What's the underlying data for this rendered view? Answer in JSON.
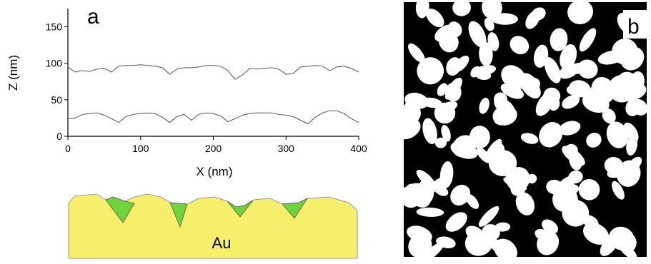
{
  "chart_data": {
    "type": "line",
    "panel_label": "a",
    "x_label": "X (nm)",
    "y_label": "Z (nm)",
    "x": [
      0,
      10,
      20,
      30,
      40,
      50,
      60,
      70,
      80,
      90,
      100,
      110,
      120,
      130,
      140,
      150,
      160,
      170,
      180,
      190,
      200,
      210,
      220,
      230,
      240,
      250,
      260,
      270,
      280,
      290,
      300,
      310,
      320,
      330,
      340,
      350,
      360,
      370,
      380,
      390,
      400
    ],
    "series": [
      {
        "color": "#555555",
        "values": [
          95,
          88,
          90,
          89,
          92,
          93,
          88,
          96,
          97,
          97,
          98,
          97,
          96,
          94,
          85,
          92,
          94,
          94,
          95,
          97,
          97,
          96,
          90,
          78,
          84,
          93,
          92,
          93,
          94,
          92,
          85,
          86,
          95,
          96,
          97,
          96,
          90,
          95,
          96,
          93,
          88
        ]
      },
      {
        "color": "#555555",
        "values": [
          24,
          25,
          30,
          31,
          32,
          29,
          24,
          19,
          27,
          30,
          31,
          32,
          31,
          26,
          19,
          27,
          30,
          22,
          30,
          32,
          31,
          28,
          20,
          24,
          29,
          31,
          32,
          32,
          32,
          30,
          29,
          27,
          22,
          17,
          26,
          32,
          35,
          35,
          31,
          24,
          19
        ]
      }
    ],
    "xlim": [
      0,
      400
    ],
    "xticks": [
      0,
      100,
      200,
      300,
      400
    ],
    "ylim": [
      0,
      175
    ],
    "yticks": [
      0,
      50,
      100,
      150
    ]
  },
  "diagram": {
    "label": "Au"
  },
  "image": {
    "panel_label": "b"
  }
}
